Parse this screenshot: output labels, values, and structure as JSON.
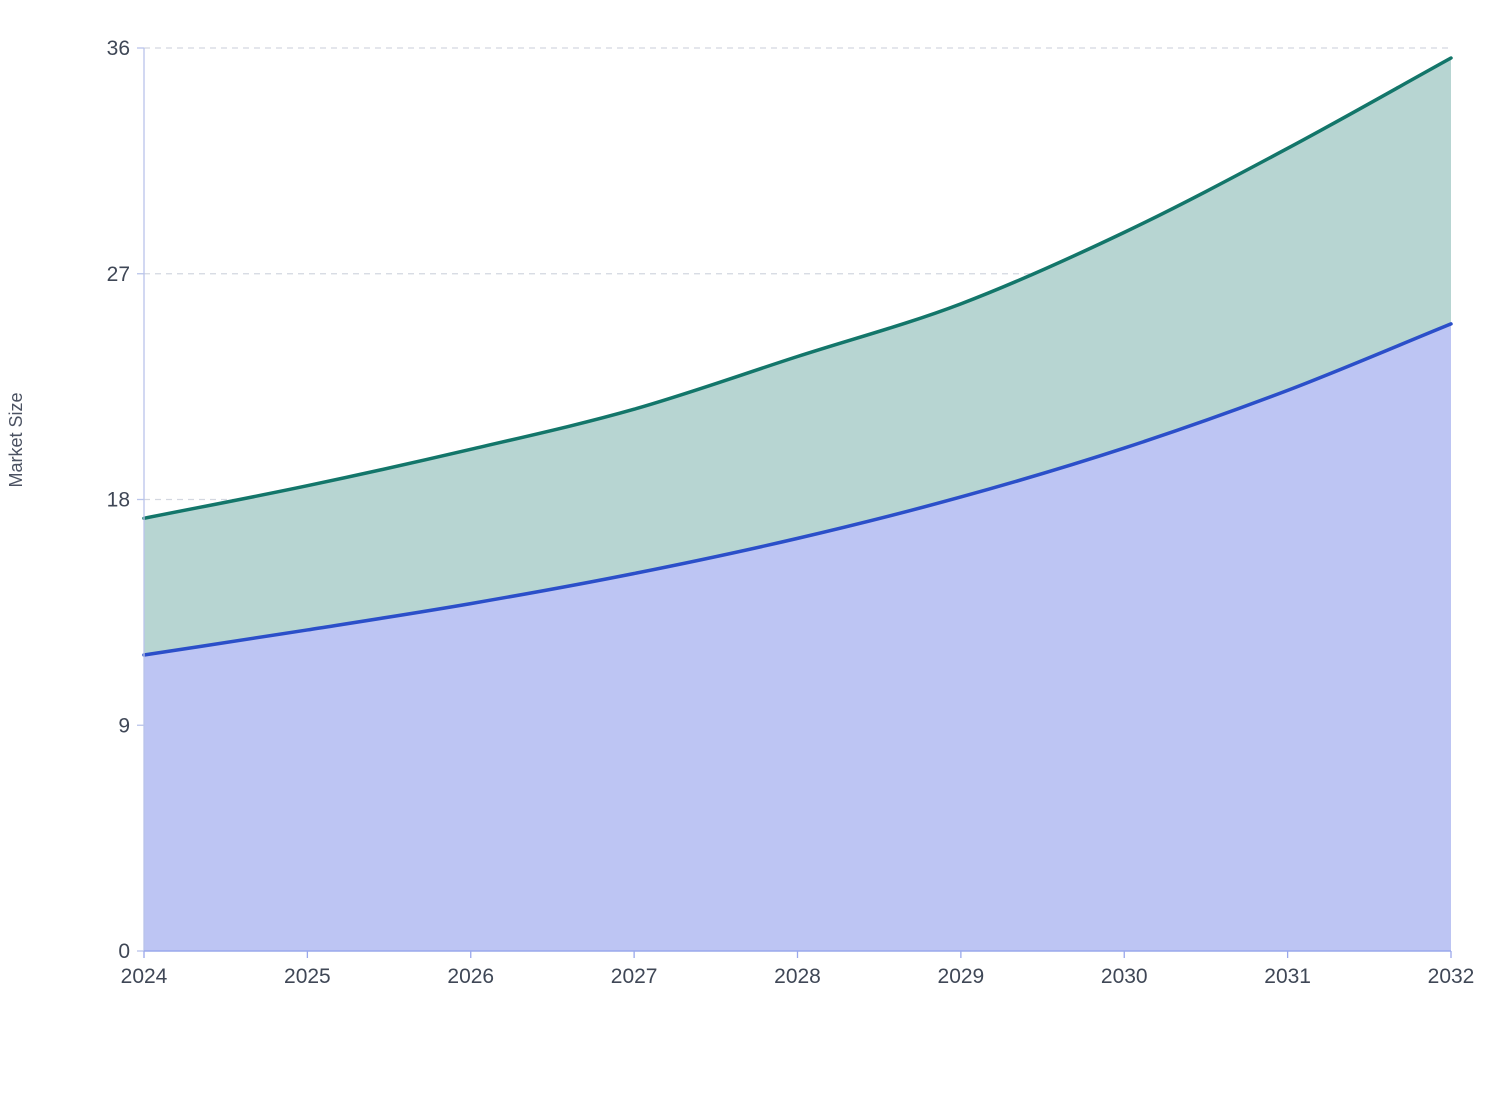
{
  "chart_data": {
    "type": "area",
    "stacked": true,
    "title": "",
    "xlabel": "",
    "ylabel": "Market Size",
    "x": [
      2024,
      2025,
      2026,
      2027,
      2028,
      2029,
      2030,
      2031,
      2032
    ],
    "ylim": [
      0,
      36
    ],
    "yticks": [
      0,
      9,
      18,
      27,
      36
    ],
    "grid": true,
    "legend": "none",
    "series": [
      {
        "values": [
          11.8,
          12.8,
          13.85,
          15.05,
          16.45,
          18.1,
          20.05,
          22.35,
          25.0
        ],
        "color": "#2b4fc9",
        "fill": "#bdc5f3"
      },
      {
        "values": [
          5.45,
          5.75,
          6.15,
          6.55,
          7.25,
          7.7,
          8.6,
          9.65,
          10.6
        ],
        "color": "#13766a",
        "fill": "#b7d5d2"
      }
    ]
  }
}
